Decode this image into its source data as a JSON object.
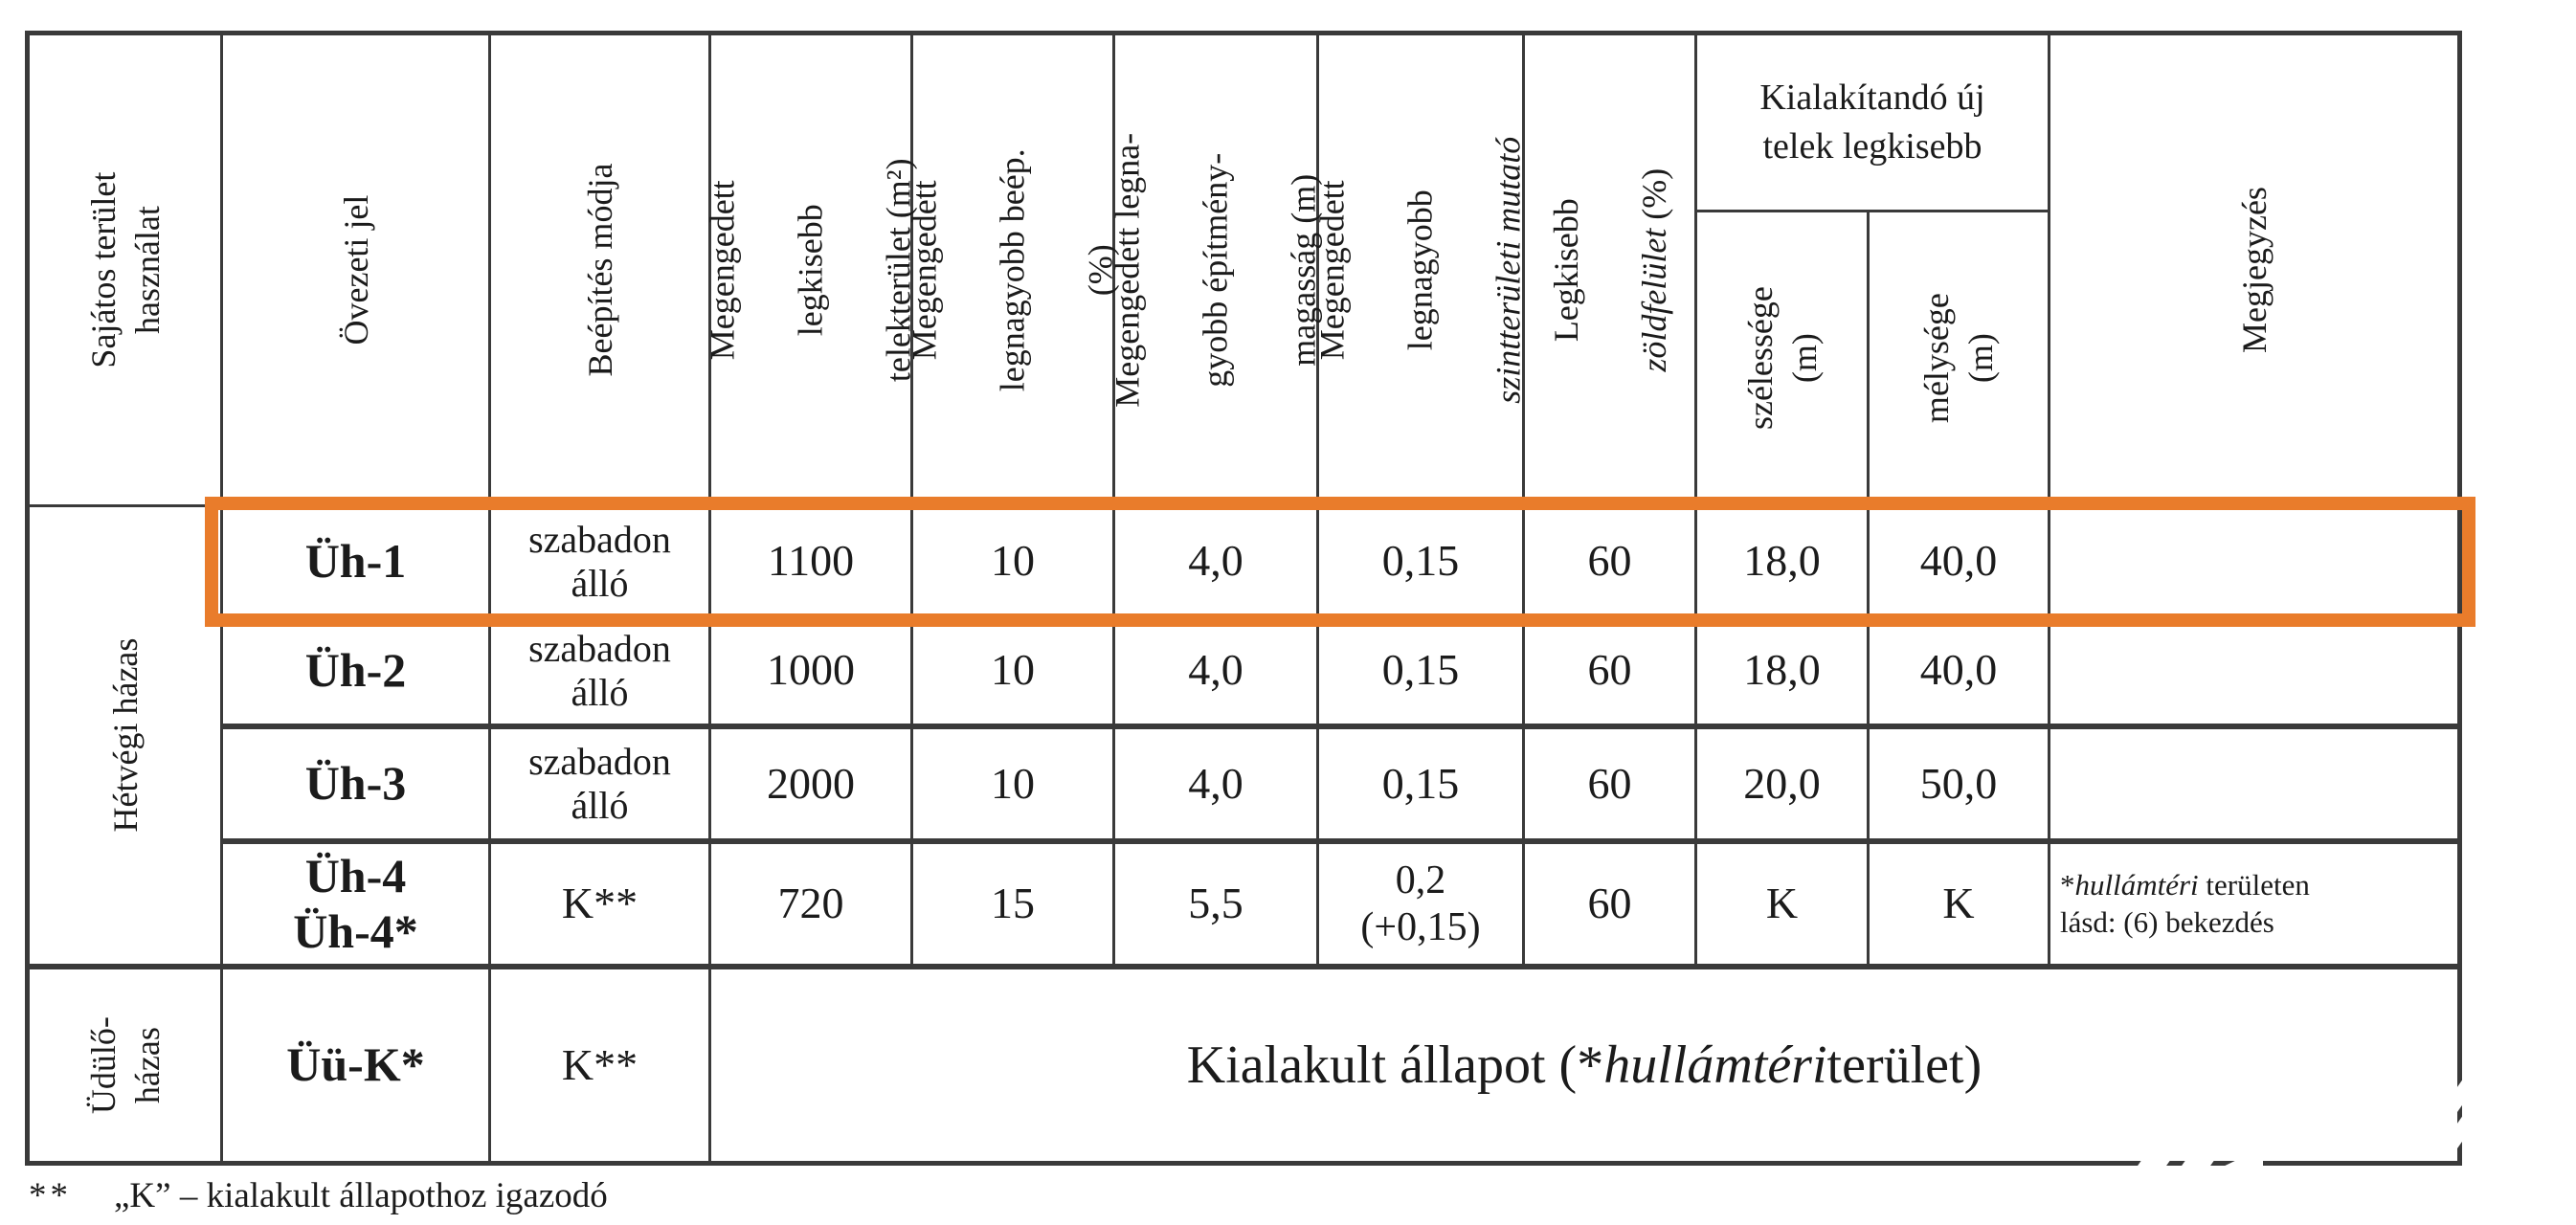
{
  "colors": {
    "highlight_orange": "#e97c2b",
    "border_dark": "#3a3a3a",
    "text": "#1b1b1b",
    "watermark": "#ffffff"
  },
  "header": {
    "sajatos": "Sajátos terület\nhasználat",
    "ovezeti": "Övezeti jel",
    "beepites": "Beépítés módja",
    "telek_l1": "Megengedett",
    "telek_l2": "legkisebb",
    "telek_l3": "telekterület (m²)",
    "beep_l1": "Megengedett",
    "beep_l2": "legnagyobb beép.",
    "beep_l3": "(%)",
    "mag_l1": "Megengedett legna-",
    "mag_l2": "gyobb építmény-",
    "mag_l3": "magasság (m)",
    "szint_l1": "Megengedett",
    "szint_l2": "legnagyobb",
    "szint_l3": "szintterületi mutató",
    "zold_l1": "Legkisebb",
    "zold_l2_italic": "zöldfelület",
    "zold_l2_rest": " (%)",
    "kialakitando": "Kialakítandó új\ntelek legkisebb",
    "szelessege": "szélessége\n(m)",
    "melysege": "mélysége\n(m)",
    "megjegyzes": "Megjegyzés"
  },
  "groups": {
    "hetvegi": "Hétvégi házas",
    "udulo": "Üdülő-\nházas"
  },
  "rows": [
    {
      "jel": "Üh-1",
      "mode": "szabadon\nálló",
      "telek": "1100",
      "beep": "10",
      "mag": "4,0",
      "szint": "0,15",
      "zold": "60",
      "szel": "18,0",
      "mely": "40,0",
      "note": ""
    },
    {
      "jel": "Üh-2",
      "mode": "szabadon\nálló",
      "telek": "1000",
      "beep": "10",
      "mag": "4,0",
      "szint": "0,15",
      "zold": "60",
      "szel": "18,0",
      "mely": "40,0",
      "note": ""
    },
    {
      "jel": "Üh-3",
      "mode": "szabadon\nálló",
      "telek": "2000",
      "beep": "10",
      "mag": "4,0",
      "szint": "0,15",
      "zold": "60",
      "szel": "20,0",
      "mely": "50,0",
      "note": ""
    },
    {
      "jel": "Üh-4\nÜh-4*",
      "mode": "K**",
      "telek": "720",
      "beep": "15",
      "mag": "5,5",
      "szint": "0,2\n(+0,15)",
      "zold": "60",
      "szel": "K",
      "mely": "K",
      "note_star": "*",
      "note_italic": "hullámtéri",
      "note_rest": " területen",
      "note_line2": "lásd: (6) bekezdés"
    }
  ],
  "merged_row": {
    "jel": "Üü-K*",
    "mode": "K**",
    "pre": "Kialakult állapot (*",
    "italic": "hullámtéri",
    "post": " terület)"
  },
  "footnote": {
    "marker": "**",
    "text": "„K” – kialakult állapothoz igazodó"
  },
  "watermark": {
    "text": "INGATLANTRO"
  }
}
